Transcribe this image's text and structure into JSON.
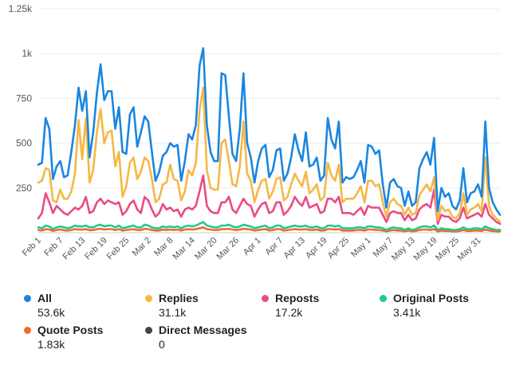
{
  "chart_data": {
    "type": "line",
    "title": "",
    "xlabel": "",
    "ylabel": "",
    "ylim": [
      0,
      1250
    ],
    "yticks": [
      250,
      500,
      750,
      1000,
      1250
    ],
    "ytick_labels": [
      "250",
      "500",
      "750",
      "1k",
      "1.25k"
    ],
    "grid": true,
    "legend_position": "bottom",
    "x_tick_labels": [
      "Feb 1",
      "Feb 7",
      "Feb 13",
      "Feb 19",
      "Feb 25",
      "Mar 2",
      "Mar 8",
      "Mar 14",
      "Mar 20",
      "Mar 26",
      "Apr 1",
      "Apr 7",
      "Apr 13",
      "Apr 19",
      "Apr 25",
      "May 1",
      "May 7",
      "May 13",
      "May 19",
      "May 25",
      "May 31"
    ],
    "x_tick_index": [
      0,
      6,
      12,
      18,
      24,
      30,
      36,
      42,
      48,
      54,
      60,
      66,
      72,
      78,
      84,
      90,
      96,
      102,
      108,
      114,
      120
    ],
    "num_days": 127,
    "series": [
      {
        "name": "All",
        "color": "#1a86e0",
        "total": "53.6k",
        "values": [
          380,
          390,
          640,
          580,
          300,
          370,
          400,
          310,
          320,
          450,
          600,
          810,
          680,
          790,
          420,
          560,
          780,
          940,
          740,
          790,
          790,
          580,
          700,
          450,
          440,
          660,
          700,
          480,
          560,
          650,
          620,
          450,
          290,
          340,
          430,
          450,
          500,
          480,
          490,
          290,
          400,
          550,
          520,
          600,
          930,
          1030,
          600,
          450,
          400,
          400,
          890,
          880,
          650,
          440,
          400,
          580,
          890,
          500,
          420,
          280,
          400,
          470,
          490,
          310,
          350,
          460,
          470,
          290,
          330,
          420,
          550,
          460,
          400,
          560,
          370,
          380,
          420,
          290,
          320,
          640,
          520,
          470,
          620,
          280,
          310,
          300,
          310,
          350,
          400,
          280,
          490,
          480,
          440,
          460,
          270,
          140,
          280,
          300,
          260,
          250,
          150,
          230,
          150,
          170,
          360,
          410,
          450,
          380,
          530,
          120,
          250,
          200,
          220,
          150,
          130,
          180,
          360,
          170,
          220,
          230,
          270,
          200,
          620,
          250,
          170,
          130,
          100
        ]
      },
      {
        "name": "Replies",
        "color": "#f5b844",
        "total": "31.1k",
        "values": [
          280,
          290,
          360,
          350,
          180,
          170,
          240,
          190,
          190,
          230,
          330,
          630,
          410,
          640,
          280,
          350,
          560,
          690,
          500,
          560,
          570,
          370,
          450,
          200,
          260,
          390,
          420,
          300,
          340,
          420,
          400,
          300,
          170,
          190,
          270,
          280,
          380,
          300,
          290,
          180,
          230,
          350,
          320,
          390,
          680,
          810,
          350,
          250,
          240,
          240,
          500,
          520,
          400,
          270,
          260,
          370,
          620,
          330,
          290,
          170,
          240,
          290,
          300,
          190,
          230,
          300,
          310,
          180,
          200,
          270,
          330,
          290,
          260,
          340,
          220,
          240,
          270,
          180,
          200,
          390,
          320,
          290,
          380,
          170,
          190,
          190,
          190,
          220,
          260,
          170,
          290,
          290,
          260,
          270,
          170,
          90,
          170,
          190,
          160,
          150,
          100,
          140,
          100,
          110,
          210,
          240,
          270,
          230,
          310,
          70,
          150,
          120,
          130,
          90,
          80,
          110,
          220,
          100,
          130,
          140,
          160,
          120,
          420,
          150,
          100,
          80,
          60
        ]
      },
      {
        "name": "Reposts",
        "color": "#ea4a86",
        "total": "17.2k",
        "values": [
          80,
          110,
          220,
          170,
          110,
          150,
          130,
          110,
          100,
          120,
          140,
          130,
          150,
          200,
          110,
          120,
          170,
          190,
          160,
          180,
          170,
          160,
          170,
          100,
          120,
          160,
          180,
          130,
          110,
          200,
          180,
          130,
          90,
          110,
          160,
          130,
          140,
          120,
          130,
          90,
          130,
          140,
          130,
          150,
          230,
          320,
          150,
          120,
          110,
          110,
          170,
          170,
          200,
          130,
          110,
          150,
          190,
          160,
          150,
          90,
          130,
          160,
          170,
          110,
          120,
          170,
          170,
          100,
          120,
          150,
          200,
          170,
          150,
          200,
          140,
          150,
          160,
          110,
          120,
          190,
          190,
          170,
          200,
          110,
          110,
          110,
          100,
          120,
          140,
          100,
          150,
          140,
          140,
          140,
          100,
          60,
          110,
          120,
          110,
          110,
          70,
          100,
          70,
          80,
          130,
          150,
          160,
          140,
          240,
          50,
          100,
          90,
          90,
          70,
          60,
          80,
          140,
          80,
          90,
          100,
          110,
          90,
          160,
          100,
          80,
          60,
          50
        ]
      },
      {
        "name": "Original Posts",
        "color": "#1ec98f",
        "total": "3.41k",
        "values": [
          30,
          25,
          40,
          35,
          20,
          30,
          35,
          30,
          25,
          30,
          40,
          35,
          35,
          40,
          30,
          30,
          40,
          45,
          35,
          40,
          40,
          30,
          40,
          25,
          30,
          35,
          40,
          30,
          30,
          45,
          40,
          30,
          25,
          25,
          35,
          30,
          35,
          30,
          35,
          25,
          35,
          40,
          35,
          40,
          50,
          60,
          40,
          35,
          30,
          30,
          40,
          40,
          45,
          35,
          30,
          35,
          45,
          40,
          35,
          25,
          30,
          35,
          40,
          25,
          30,
          40,
          40,
          25,
          30,
          35,
          40,
          35,
          35,
          40,
          30,
          30,
          35,
          25,
          25,
          40,
          40,
          35,
          40,
          25,
          25,
          25,
          25,
          30,
          30,
          25,
          35,
          35,
          30,
          30,
          25,
          15,
          25,
          30,
          25,
          25,
          15,
          25,
          15,
          20,
          30,
          35,
          35,
          30,
          40,
          15,
          25,
          20,
          20,
          15,
          15,
          20,
          30,
          20,
          20,
          25,
          25,
          20,
          35,
          25,
          20,
          15,
          15
        ]
      },
      {
        "name": "Quote Posts",
        "color": "#f06a2c",
        "total": "1.83k",
        "values": [
          15,
          12,
          20,
          18,
          10,
          15,
          18,
          14,
          12,
          15,
          20,
          18,
          18,
          20,
          14,
          15,
          20,
          22,
          18,
          20,
          20,
          15,
          20,
          12,
          15,
          18,
          20,
          15,
          15,
          22,
          20,
          15,
          12,
          12,
          18,
          15,
          18,
          15,
          18,
          12,
          18,
          20,
          18,
          20,
          25,
          30,
          20,
          18,
          15,
          15,
          20,
          20,
          22,
          18,
          15,
          18,
          22,
          20,
          18,
          12,
          15,
          18,
          20,
          12,
          15,
          20,
          20,
          12,
          15,
          18,
          20,
          18,
          18,
          20,
          15,
          15,
          18,
          12,
          12,
          20,
          20,
          18,
          20,
          12,
          12,
          12,
          12,
          15,
          15,
          12,
          18,
          18,
          15,
          15,
          12,
          8,
          12,
          15,
          12,
          12,
          8,
          12,
          8,
          10,
          15,
          18,
          18,
          15,
          20,
          8,
          12,
          10,
          10,
          8,
          8,
          10,
          15,
          10,
          10,
          12,
          12,
          10,
          18,
          12,
          10,
          8,
          8
        ]
      },
      {
        "name": "Direct Messages",
        "color": "#444444",
        "total": "0",
        "values": []
      }
    ]
  }
}
